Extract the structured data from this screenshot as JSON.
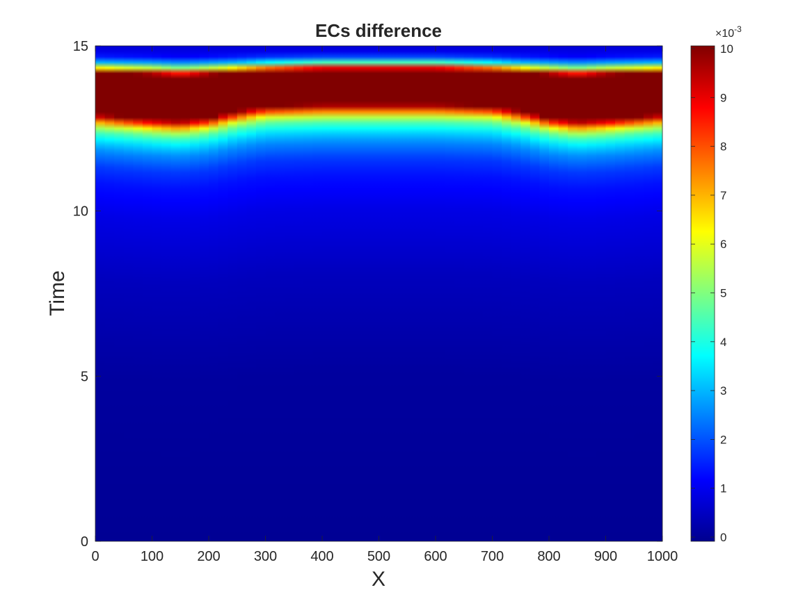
{
  "chart_data": {
    "type": "heatmap",
    "title": "ECs difference",
    "xlabel": "X",
    "ylabel": "Time",
    "xlim": [
      0,
      1000
    ],
    "ylim": [
      0,
      15
    ],
    "x_ticks": [
      0,
      100,
      200,
      300,
      400,
      500,
      600,
      700,
      800,
      900,
      1000
    ],
    "y_ticks": [
      0,
      5,
      10,
      15
    ],
    "x_tick_labels": [
      "0",
      "100",
      "200",
      "300",
      "400",
      "500",
      "600",
      "700",
      "800",
      "900",
      "1000"
    ],
    "y_tick_labels": [
      "0",
      "5",
      "10",
      "15"
    ],
    "colormap": "jet",
    "colorbar": {
      "clim": [
        0,
        0.01
      ],
      "ticks": [
        0,
        1,
        2,
        3,
        4,
        5,
        6,
        7,
        8,
        9,
        10
      ],
      "tick_labels": [
        "0",
        "1",
        "2",
        "3",
        "4",
        "5",
        "6",
        "7",
        "8",
        "9",
        "10"
      ],
      "multiplier_base": "×10",
      "multiplier_exp": "-3"
    },
    "grid": false,
    "band_x": [
      0,
      100,
      150,
      200,
      250,
      300,
      400,
      500,
      600,
      700,
      750,
      800,
      850,
      900,
      1000
    ],
    "band_saturated_lower_time": [
      12.9,
      12.75,
      12.7,
      12.8,
      13.0,
      13.15,
      13.2,
      13.2,
      13.2,
      13.15,
      13.0,
      12.8,
      12.7,
      12.75,
      12.9
    ],
    "band_saturated_upper_time": [
      14.2,
      14.15,
      14.1,
      14.15,
      14.2,
      14.25,
      14.3,
      14.3,
      14.3,
      14.25,
      14.2,
      14.15,
      14.1,
      14.15,
      14.2
    ],
    "time_profile": {
      "time": [
        0,
        5,
        8,
        10,
        11,
        11.5,
        12,
        12.3,
        12.6,
        12.8,
        13.1,
        14.2,
        14.35,
        14.5,
        14.7,
        15
      ],
      "value": [
        0.0002,
        0.0003,
        0.0006,
        0.001,
        0.0014,
        0.0018,
        0.0026,
        0.0034,
        0.0046,
        0.006,
        0.01,
        0.01,
        0.006,
        0.003,
        0.0012,
        0.0008
      ]
    }
  }
}
